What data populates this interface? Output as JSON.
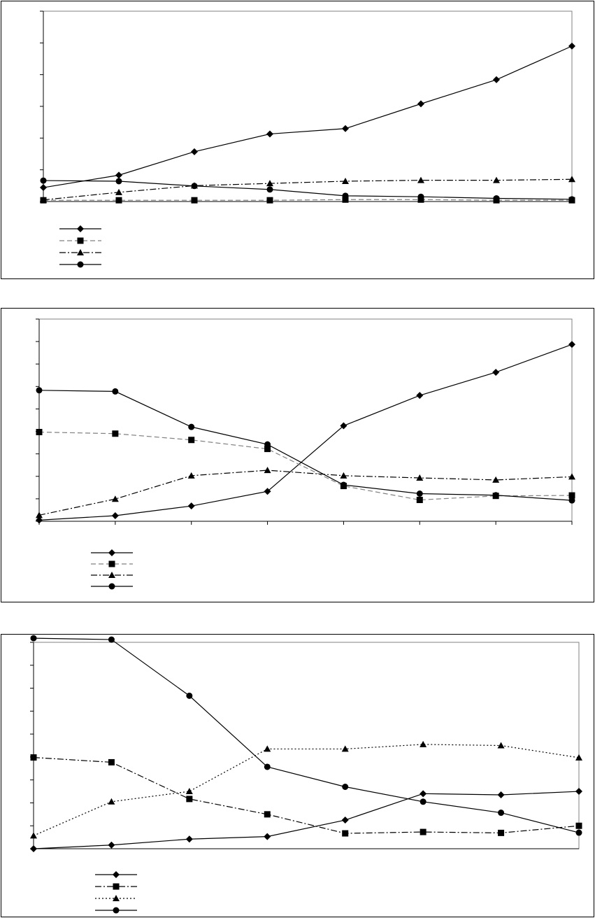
{
  "chart_data": [
    {
      "type": "line",
      "x": [
        1,
        2,
        3,
        4,
        5,
        6,
        7,
        8
      ],
      "ylim": [
        0,
        6
      ],
      "yticks": 6,
      "series": [
        {
          "style": "solid",
          "marker": "diamond",
          "color": "#000000",
          "values": [
            0.44,
            0.83,
            1.57,
            2.13,
            2.3,
            3.08,
            3.84,
            4.9
          ]
        },
        {
          "style": "dashed",
          "marker": "square",
          "color": "#808080",
          "values": [
            0.04,
            0.04,
            0.04,
            0.04,
            0.06,
            0.06,
            0.04,
            0.04
          ]
        },
        {
          "style": "dashdot",
          "marker": "triangle",
          "color": "#000000",
          "values": [
            0.05,
            0.29,
            0.5,
            0.57,
            0.64,
            0.67,
            0.67,
            0.7
          ]
        },
        {
          "style": "solid",
          "marker": "circle",
          "color": "#000000",
          "values": [
            0.66,
            0.64,
            0.49,
            0.38,
            0.18,
            0.15,
            0.1,
            0.07
          ]
        }
      ],
      "legend_placement": "bottom-left",
      "grid": false
    },
    {
      "type": "line",
      "x": [
        1,
        2,
        3,
        4,
        5,
        6,
        7,
        8
      ],
      "ylim": [
        0,
        9
      ],
      "yticks": 9,
      "xticks": 7,
      "series": [
        {
          "style": "solid",
          "marker": "diamond",
          "color": "#000000",
          "values": [
            0.05,
            0.25,
            0.68,
            1.33,
            4.25,
            5.6,
            6.63,
            7.87
          ]
        },
        {
          "style": "dashed",
          "marker": "square",
          "color": "#808080",
          "values": [
            3.97,
            3.9,
            3.62,
            3.22,
            1.57,
            0.95,
            1.13,
            1.15
          ]
        },
        {
          "style": "dashdot",
          "marker": "triangle",
          "color": "#000000",
          "values": [
            0.27,
            0.99,
            2.03,
            2.27,
            2.03,
            1.93,
            1.84,
            1.98
          ]
        },
        {
          "style": "solid",
          "marker": "circle",
          "color": "#000000",
          "values": [
            5.83,
            5.78,
            4.2,
            3.42,
            1.62,
            1.23,
            1.16,
            0.93
          ]
        }
      ],
      "legend_placement": "bottom-left",
      "grid": false
    },
    {
      "type": "line",
      "x": [
        1,
        2,
        3,
        4,
        5,
        6,
        7,
        8
      ],
      "ylim": [
        0,
        9
      ],
      "yticks": 9,
      "series": [
        {
          "style": "solid",
          "marker": "diamond",
          "color": "#000000",
          "values": [
            0.0,
            0.16,
            0.42,
            0.53,
            1.25,
            2.4,
            2.35,
            2.5
          ]
        },
        {
          "style": "dashdot",
          "marker": "square",
          "color": "#000000",
          "values": [
            3.98,
            3.77,
            2.17,
            1.5,
            0.67,
            0.73,
            0.69,
            1.0
          ]
        },
        {
          "style": "dotted",
          "marker": "triangle",
          "color": "#000000",
          "values": [
            0.57,
            2.05,
            2.5,
            4.35,
            4.35,
            4.55,
            4.5,
            3.97
          ]
        },
        {
          "style": "solid",
          "marker": "circle",
          "color": "#000000",
          "values": [
            9.18,
            9.12,
            6.67,
            3.57,
            2.7,
            2.05,
            1.57,
            0.7
          ]
        }
      ],
      "legend_placement": "bottom-left",
      "grid": false
    }
  ]
}
